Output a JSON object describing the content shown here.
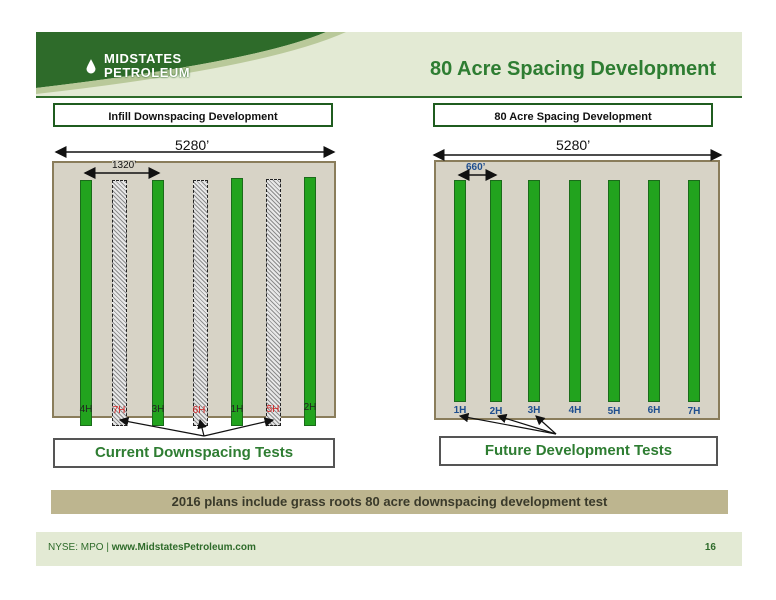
{
  "header": {
    "title": "80 Acre Spacing Development",
    "logo_line1": "MIDSTATES",
    "logo_line2": "PETROLEUM",
    "colors": {
      "header_green": "#2e6b2a",
      "header_band": "#e3ead4",
      "title_green": "#2e7d32"
    }
  },
  "left_panel": {
    "label": "Infill Downspacing Development",
    "width_label": "5280’",
    "spacing_label": "1320’",
    "wells": [
      {
        "name": "4H",
        "tested": false
      },
      {
        "name": "7H",
        "tested": true
      },
      {
        "name": "3H",
        "tested": false
      },
      {
        "name": "6H",
        "tested": true
      },
      {
        "name": "1H",
        "tested": false
      },
      {
        "name": "5H",
        "tested": true
      },
      {
        "name": "2H",
        "tested": false
      }
    ],
    "test_box": "Current Downspacing Tests"
  },
  "right_panel": {
    "label": "80 Acre Spacing Development",
    "width_label": "5280’",
    "spacing_label": "660’",
    "wells": [
      "1H",
      "2H",
      "3H",
      "4H",
      "5H",
      "6H",
      "7H"
    ],
    "test_box": "Future Development Tests"
  },
  "banner": "2016 plans include grass roots 80 acre downspacing development test",
  "footer": {
    "ticker": "NYSE: MPO",
    "separator": "|",
    "site": "www.MidstatesPetroleum.com",
    "page": "16"
  }
}
